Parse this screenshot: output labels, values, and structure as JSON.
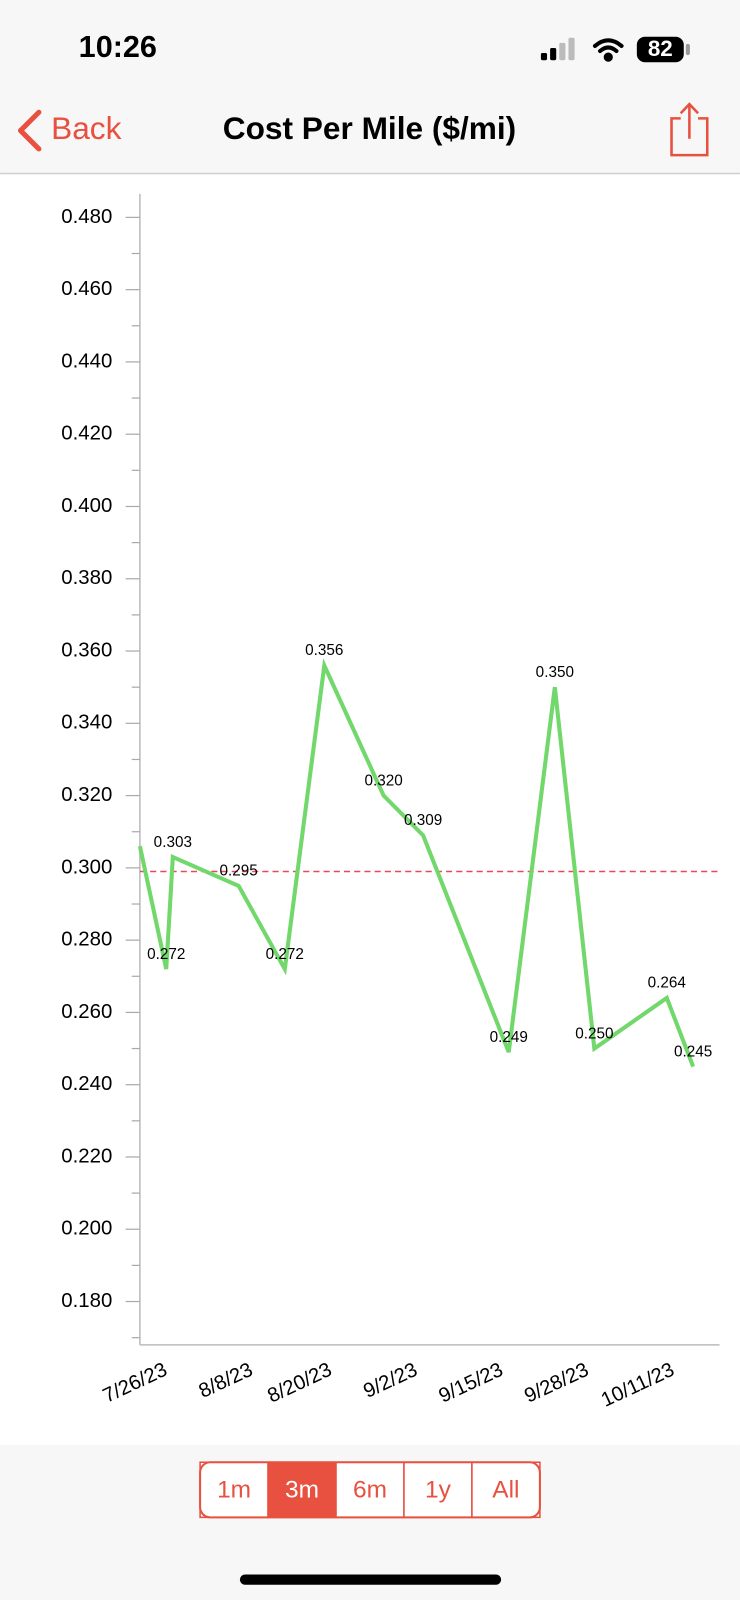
{
  "status_bar": {
    "time": "10:26",
    "battery": "82"
  },
  "nav": {
    "back": "Back",
    "title": "Cost Per Mile ($/mi)"
  },
  "chart_data": {
    "type": "line",
    "x": [
      "7/22/23",
      "7/26/23",
      "7/27/23",
      "8/6/23",
      "8/13/23",
      "8/19/23",
      "8/28/23",
      "9/3/23",
      "9/16/23",
      "9/23/23",
      "9/29/23",
      "10/10/23",
      "10/14/23"
    ],
    "series": [
      {
        "color": "#72d86c",
        "values": [
          0.306,
          0.272,
          0.303,
          0.295,
          0.272,
          0.356,
          0.32,
          0.309,
          0.249,
          0.35,
          0.25,
          0.264,
          0.245
        ],
        "value_labels": [
          null,
          "0.272",
          "0.303",
          "0.295",
          "0.272",
          "0.356",
          "0.320",
          "0.309",
          "0.249",
          "0.350",
          "0.250",
          "0.264",
          "0.245"
        ]
      }
    ],
    "xlim": [
      "7/22/23",
      "10/18/23"
    ],
    "xticks": [
      "7/26/23",
      "8/8/23",
      "8/20/23",
      "9/2/23",
      "9/15/23",
      "9/28/23",
      "10/11/23"
    ],
    "ylim": [
      0.168,
      0.4865
    ],
    "yticks": [
      {
        "value": 0.18,
        "label": "0.180"
      },
      {
        "value": 0.2,
        "label": "0.200"
      },
      {
        "value": 0.22,
        "label": "0.220"
      },
      {
        "value": 0.24,
        "label": "0.240"
      },
      {
        "value": 0.26,
        "label": "0.260"
      },
      {
        "value": 0.28,
        "label": "0.280"
      },
      {
        "value": 0.3,
        "label": "0.300"
      },
      {
        "value": 0.32,
        "label": "0.320"
      },
      {
        "value": 0.34,
        "label": "0.340"
      },
      {
        "value": 0.36,
        "label": "0.360"
      },
      {
        "value": 0.38,
        "label": "0.380"
      },
      {
        "value": 0.4,
        "label": "0.400"
      },
      {
        "value": 0.42,
        "label": "0.420"
      },
      {
        "value": 0.44,
        "label": "0.440"
      },
      {
        "value": 0.46,
        "label": "0.460"
      },
      {
        "value": 0.48,
        "label": "0.480"
      }
    ],
    "yminorticks": [
      0.17,
      0.19,
      0.21,
      0.23,
      0.25,
      0.27,
      0.29,
      0.31,
      0.33,
      0.35,
      0.37,
      0.39,
      0.41,
      0.43,
      0.45,
      0.47
    ],
    "reference_line": {
      "value": 0.299,
      "color": "#e8485a"
    }
  },
  "range_selector": {
    "options": [
      "1m",
      "3m",
      "6m",
      "1y",
      "All"
    ],
    "selected": 1
  }
}
